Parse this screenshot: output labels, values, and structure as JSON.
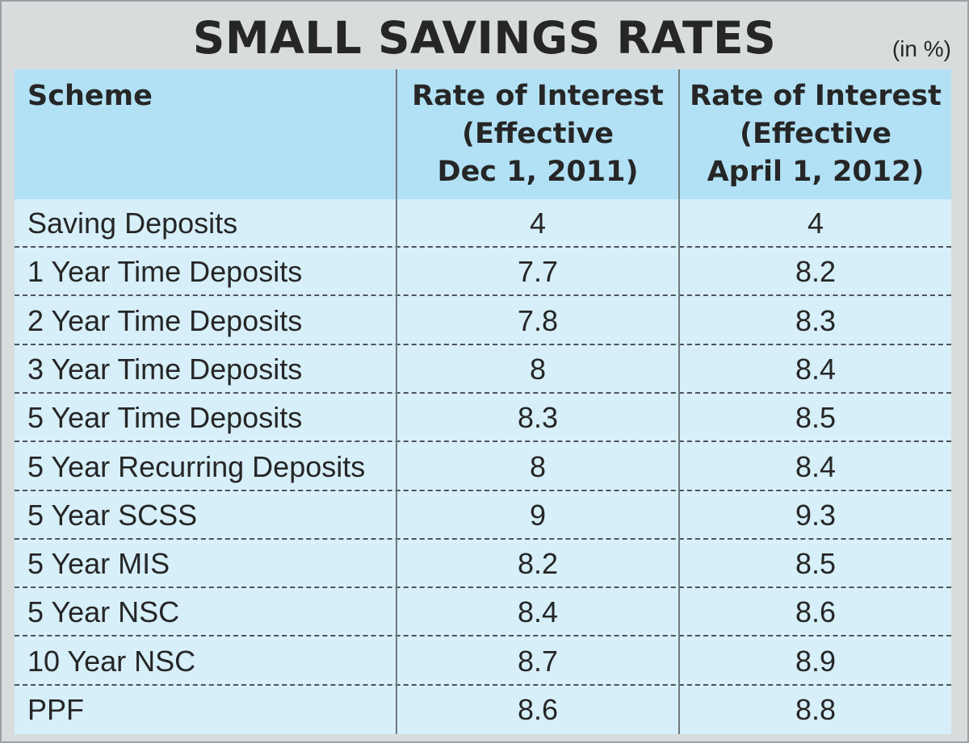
{
  "chart_data": {
    "type": "table",
    "title": "SMALL SAVINGS RATES",
    "unit_note": "(in %)",
    "columns": [
      "Scheme",
      "Rate of Interest (Effective Dec 1, 2011)",
      "Rate of Interest (Effective April 1, 2012)"
    ],
    "header": {
      "scheme": "Scheme",
      "col1_lines": [
        "Rate of Interest",
        "(Effective",
        "Dec 1, 2011)"
      ],
      "col2_lines": [
        "Rate of Interest",
        "(Effective",
        "April 1, 2012)"
      ]
    },
    "rows": [
      {
        "scheme": "Saving Deposits",
        "dec_2011": "4",
        "apr_2012": "4"
      },
      {
        "scheme": "1 Year Time Deposits",
        "dec_2011": "7.7",
        "apr_2012": "8.2"
      },
      {
        "scheme": "2 Year Time Deposits",
        "dec_2011": "7.8",
        "apr_2012": "8.3"
      },
      {
        "scheme": "3 Year Time Deposits",
        "dec_2011": "8",
        "apr_2012": "8.4"
      },
      {
        "scheme": "5 Year Time Deposits",
        "dec_2011": "8.3",
        "apr_2012": "8.5"
      },
      {
        "scheme": "5 Year Recurring Deposits",
        "dec_2011": "8",
        "apr_2012": "8.4"
      },
      {
        "scheme": "5 Year SCSS",
        "dec_2011": "9",
        "apr_2012": "9.3"
      },
      {
        "scheme": "5 Year MIS",
        "dec_2011": "8.2",
        "apr_2012": "8.5"
      },
      {
        "scheme": "5 Year NSC",
        "dec_2011": "8.4",
        "apr_2012": "8.6"
      },
      {
        "scheme": "10 Year NSC",
        "dec_2011": "8.7",
        "apr_2012": "8.9"
      },
      {
        "scheme": "PPF",
        "dec_2011": "8.6",
        "apr_2012": "8.8"
      }
    ]
  },
  "colors": {
    "frame_bg": "#d8dcdc",
    "header_bg": "#b2e1f5",
    "body_bg": "#d6eff9",
    "text": "#262626"
  }
}
